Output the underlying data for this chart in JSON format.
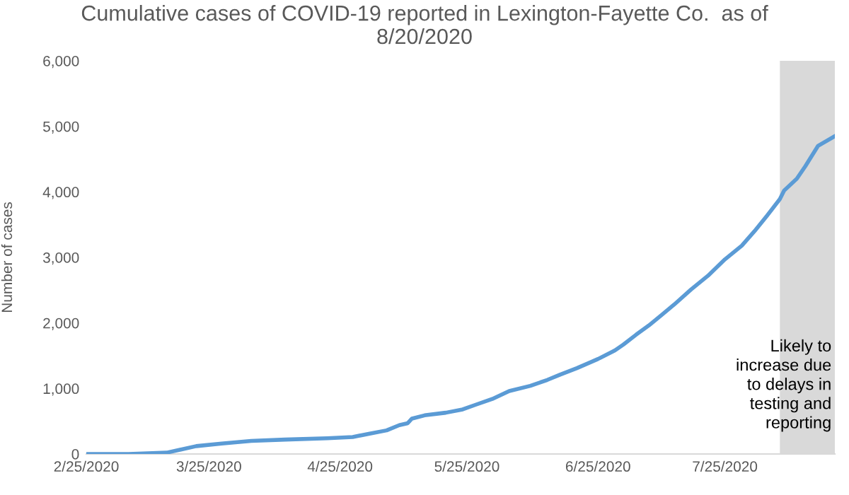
{
  "chart_data": {
    "type": "line",
    "title": "Cumulative cases of COVID-19 reported in Lexington-Fayette Co.  as of\n8/20/2020",
    "ylabel": "Number of cases",
    "x": [
      "2020-02-25",
      "2020-03-06",
      "2020-03-15",
      "2020-03-22",
      "2020-03-28",
      "2020-04-04",
      "2020-04-12",
      "2020-04-22",
      "2020-04-28",
      "2020-05-02",
      "2020-05-06",
      "2020-05-09",
      "2020-05-11",
      "2020-05-12",
      "2020-05-15",
      "2020-05-20",
      "2020-05-24",
      "2020-05-27",
      "2020-05-31",
      "2020-06-04",
      "2020-06-09",
      "2020-06-13",
      "2020-06-16",
      "2020-06-20",
      "2020-06-25",
      "2020-06-29",
      "2020-07-01",
      "2020-07-04",
      "2020-07-07",
      "2020-07-10",
      "2020-07-13",
      "2020-07-17",
      "2020-07-21",
      "2020-07-25",
      "2020-07-29",
      "2020-08-01",
      "2020-08-04",
      "2020-08-07",
      "2020-08-08",
      "2020-08-11",
      "2020-08-13",
      "2020-08-16",
      "2020-08-20"
    ],
    "series": [
      {
        "color": "#5b9bd5",
        "values": [
          0,
          0,
          20,
          120,
          160,
          200,
          220,
          240,
          260,
          310,
          360,
          440,
          470,
          540,
          590,
          630,
          680,
          750,
          840,
          960,
          1040,
          1130,
          1210,
          1310,
          1450,
          1580,
          1670,
          1820,
          1960,
          2120,
          2280,
          2510,
          2720,
          2970,
          3180,
          3400,
          3640,
          3890,
          4020,
          4200,
          4390,
          4700,
          4850
        ]
      }
    ],
    "xlim": [
      "2020-02-25",
      "2020-08-20"
    ],
    "xticks": [
      {
        "value": "2020-02-25",
        "label": "2/25/2020"
      },
      {
        "value": "2020-03-25",
        "label": "3/25/2020"
      },
      {
        "value": "2020-04-25",
        "label": "4/25/2020"
      },
      {
        "value": "2020-05-25",
        "label": "5/25/2020"
      },
      {
        "value": "2020-06-25",
        "label": "6/25/2020"
      },
      {
        "value": "2020-07-25",
        "label": "7/25/2020"
      }
    ],
    "ylim": [
      0,
      6000
    ],
    "yticks": [
      0,
      {
        "value": 1000,
        "label": "1,000"
      },
      {
        "value": 2000,
        "label": "2,000"
      },
      {
        "value": 3000,
        "label": "3,000"
      },
      {
        "value": 4000,
        "label": "4,000"
      },
      {
        "value": 5000,
        "label": "5,000"
      },
      {
        "value": 6000,
        "label": "6,000"
      }
    ],
    "bands": [
      {
        "axis": "x",
        "from": "2020-08-07",
        "to": "2020-08-20",
        "label": "Likely to\nincrease due\nto delays in\ntesting and\nreporting",
        "color": "#d9d9d9"
      }
    ],
    "grid": false,
    "marker": "none",
    "line_style": "solid"
  }
}
